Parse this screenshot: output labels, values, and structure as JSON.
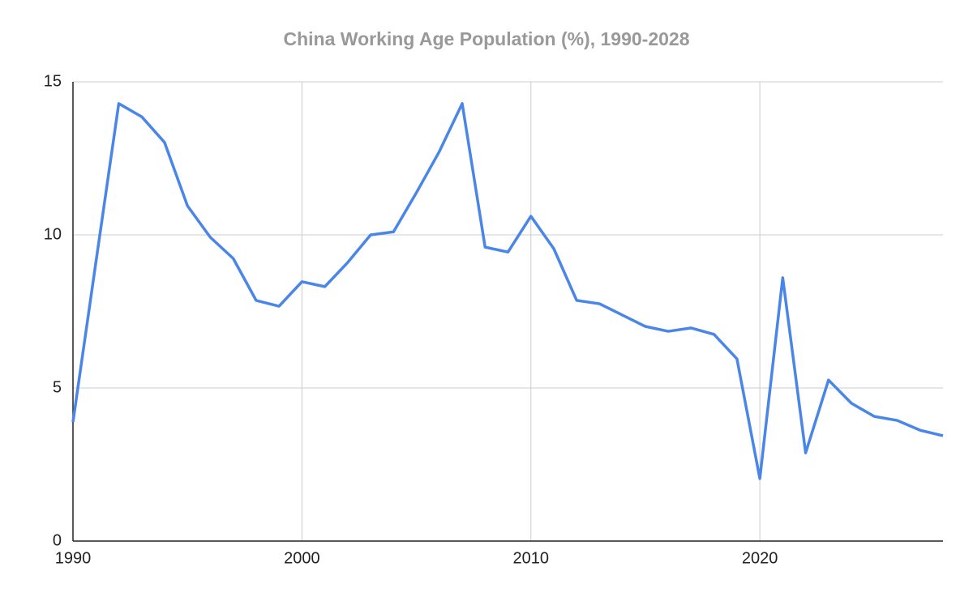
{
  "chart_data": {
    "type": "line",
    "title": "China Working Age Population (%), 1990-2028",
    "x": [
      1990,
      1991,
      1992,
      1993,
      1994,
      1995,
      1996,
      1997,
      1998,
      1999,
      2000,
      2001,
      2002,
      2003,
      2004,
      2005,
      2006,
      2007,
      2008,
      2009,
      2010,
      2011,
      2012,
      2013,
      2014,
      2015,
      2016,
      2017,
      2018,
      2019,
      2020,
      2021,
      2022,
      2023,
      2024,
      2025,
      2026,
      2027,
      2028
    ],
    "series": [
      {
        "color": "#4a86e8",
        "values": [
          3.89,
          9.1,
          14.29,
          13.86,
          13.02,
          10.95,
          9.92,
          9.23,
          7.86,
          7.67,
          8.47,
          8.31,
          9.1,
          10.0,
          10.1,
          11.38,
          12.72,
          14.29,
          9.6,
          9.44,
          10.61,
          9.55,
          7.86,
          7.75,
          7.38,
          7.01,
          6.85,
          6.96,
          6.75,
          5.95,
          2.04,
          8.6,
          2.88,
          5.26,
          4.5,
          4.07,
          3.94,
          3.62,
          3.44
        ]
      }
    ],
    "xlim": [
      1990,
      2028
    ],
    "xticks": [
      1990,
      2000,
      2010,
      2020
    ],
    "ylim": [
      0,
      15
    ],
    "yticks": [
      0,
      5,
      10,
      15
    ],
    "grid": true
  }
}
